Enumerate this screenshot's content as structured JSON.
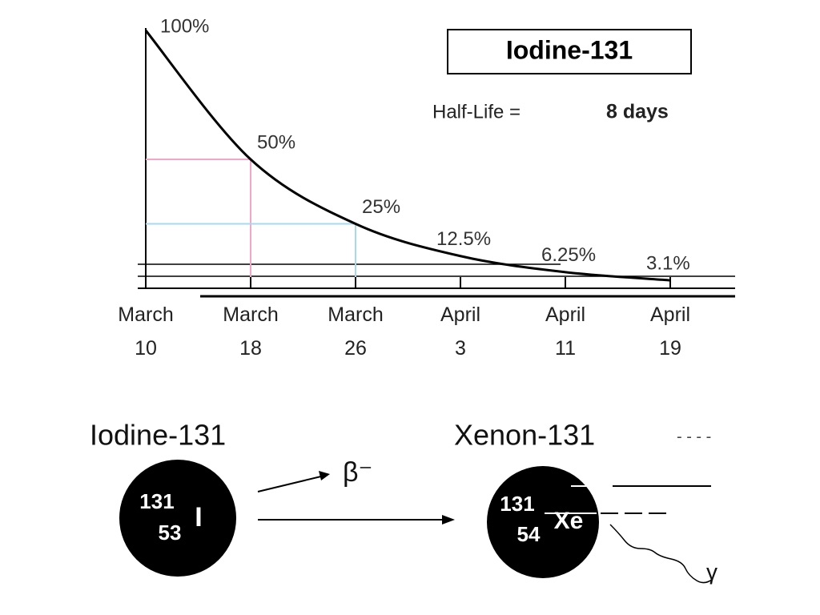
{
  "chart_data": {
    "type": "line",
    "title": "Iodine-131",
    "subtitle_label": "Half-Life =",
    "subtitle_value": "8 days",
    "categories": [
      "March\n10",
      "March\n18",
      "March\n26",
      "April\n3",
      "April\n11",
      "April\n19"
    ],
    "values": [
      100,
      50,
      25,
      12.5,
      6.25,
      3.1
    ],
    "value_labels": [
      "100%",
      "50%",
      "25%",
      "12.5%",
      "6.25%",
      "3.1%"
    ],
    "color": "#000000",
    "ylim": [
      0,
      100
    ],
    "guides": [
      {
        "value": 50,
        "color": "#f4a6c8",
        "index": 1
      },
      {
        "value": 25,
        "color": "#a8d8f0",
        "index": 2
      }
    ]
  },
  "diagram": {
    "parent": {
      "name": "Iodine-131",
      "mass": "131",
      "atomic": "53",
      "symbol": "I"
    },
    "daughter": {
      "name": "Xenon-131",
      "mass": "131",
      "atomic": "54",
      "symbol": "Xe"
    },
    "beta": "β⁻",
    "gamma": "γ"
  }
}
